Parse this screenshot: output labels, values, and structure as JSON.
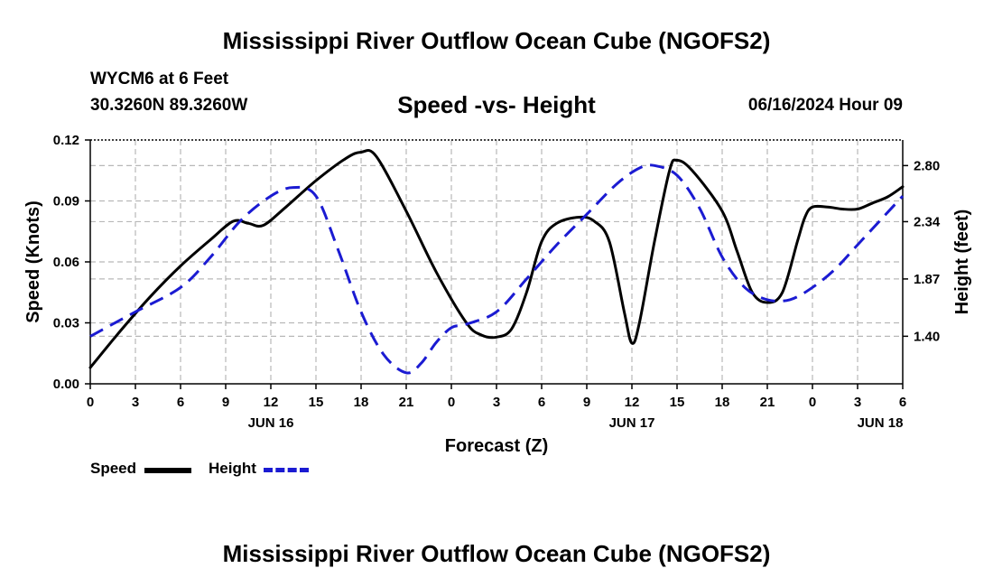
{
  "header": {
    "title": "Mississippi River Outflow Ocean Cube (NGOFS2)",
    "station": "WYCM6 at 6 Feet",
    "coords": "30.3260N  89.3260W",
    "subtitle": "Speed -vs- Height",
    "datetime": "06/16/2024 Hour 09"
  },
  "footer": {
    "title": "Mississippi River Outflow Ocean Cube (NGOFS2)"
  },
  "legend": {
    "speed_label": "Speed",
    "height_label": "Height"
  },
  "chart_data": {
    "type": "line",
    "title": "Speed -vs- Height",
    "xlabel": "Forecast (Z)",
    "ylabel": "Speed (Knots)",
    "y2label": "Height (feet)",
    "xlim": [
      0,
      54
    ],
    "ylim": [
      0,
      0.12
    ],
    "y2lim": [
      1.01,
      3.01
    ],
    "x_ticks": [
      0,
      3,
      6,
      9,
      12,
      15,
      18,
      21,
      24,
      27,
      30,
      33,
      36,
      39,
      42,
      45,
      48,
      51,
      54
    ],
    "x_tick_labels": [
      "0",
      "3",
      "6",
      "9",
      "12",
      "15",
      "18",
      "21",
      "0",
      "3",
      "6",
      "9",
      "12",
      "15",
      "18",
      "21",
      "0",
      "3",
      "6"
    ],
    "date_labels": [
      {
        "x": 12,
        "label": "JUN 16"
      },
      {
        "x": 36,
        "label": "JUN 17"
      },
      {
        "x": 52.5,
        "label": "JUN 18"
      }
    ],
    "y_ticks": [
      0.0,
      0.03,
      0.06,
      0.09,
      0.12
    ],
    "y_tick_labels": [
      "0.00",
      "0.03",
      "0.06",
      "0.09",
      "0.12"
    ],
    "y2_ticks": [
      1.4,
      1.87,
      2.34,
      2.8
    ],
    "y2_tick_labels": [
      "1.40",
      "1.87",
      "2.34",
      "2.80"
    ],
    "grid": true,
    "series": [
      {
        "name": "Speed",
        "axis": "left",
        "color": "#000000",
        "dash": "solid",
        "x": [
          0,
          2,
          4,
          6,
          8,
          9.5,
          10.5,
          11.5,
          13,
          15,
          17,
          18,
          19,
          21,
          23,
          25,
          26,
          27,
          28,
          29,
          30,
          31,
          32.5,
          33.5,
          34.5,
          35.5,
          36,
          36.5,
          37.5,
          38.5,
          39,
          40,
          42,
          43,
          44,
          45,
          46,
          47,
          47.5,
          48,
          49,
          50,
          51,
          52,
          53,
          54
        ],
        "values": [
          0.008,
          0.026,
          0.043,
          0.058,
          0.071,
          0.08,
          0.079,
          0.078,
          0.087,
          0.1,
          0.111,
          0.114,
          0.112,
          0.085,
          0.055,
          0.03,
          0.024,
          0.023,
          0.027,
          0.045,
          0.07,
          0.079,
          0.082,
          0.08,
          0.07,
          0.035,
          0.02,
          0.03,
          0.07,
          0.105,
          0.11,
          0.105,
          0.085,
          0.065,
          0.045,
          0.04,
          0.045,
          0.07,
          0.082,
          0.087,
          0.087,
          0.086,
          0.086,
          0.089,
          0.092,
          0.097
        ]
      },
      {
        "name": "Height",
        "axis": "right",
        "color": "#1b1bd2",
        "dash": "dashed",
        "x": [
          0,
          3,
          6,
          8,
          10,
          12,
          13.5,
          15,
          16.5,
          18,
          19.5,
          21,
          22,
          23,
          24,
          25,
          27,
          29,
          31,
          33,
          35,
          36.5,
          37.5,
          39,
          40.5,
          42,
          43.5,
          45,
          46.5,
          48,
          49.5,
          51,
          52.5,
          54
        ],
        "values": [
          1.4,
          1.6,
          1.8,
          2.05,
          2.35,
          2.55,
          2.62,
          2.55,
          2.1,
          1.6,
          1.25,
          1.1,
          1.18,
          1.35,
          1.47,
          1.5,
          1.6,
          1.87,
          2.15,
          2.4,
          2.65,
          2.78,
          2.8,
          2.72,
          2.45,
          2.05,
          1.8,
          1.7,
          1.7,
          1.8,
          1.95,
          2.15,
          2.35,
          2.55
        ]
      }
    ]
  }
}
